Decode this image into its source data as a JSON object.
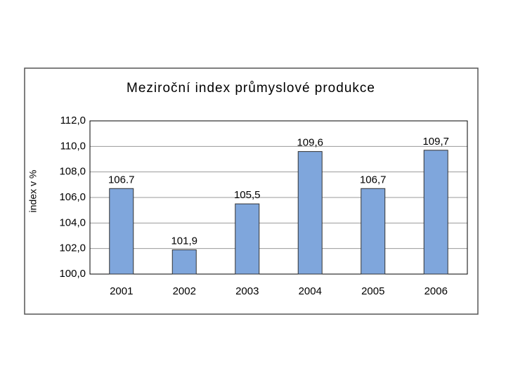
{
  "chart_data": {
    "type": "bar",
    "title": "Meziroční index průmyslové produkce",
    "y_label": "index v %",
    "categories": [
      "2001",
      "2002",
      "2003",
      "2004",
      "2005",
      "2006"
    ],
    "values": [
      106.7,
      101.9,
      105.5,
      109.6,
      106.7,
      109.7
    ],
    "value_labels": [
      "106.7",
      "101,9",
      "105,5",
      "109,6",
      "106,7",
      "109,7"
    ],
    "color": "#7fa6dc",
    "ylim": [
      100,
      112
    ],
    "yticks": [
      {
        "value": 100,
        "label": "100,0"
      },
      {
        "value": 102,
        "label": "102,0"
      },
      {
        "value": 104,
        "label": "104,0"
      },
      {
        "value": 106,
        "label": "106,0"
      },
      {
        "value": 108,
        "label": "108,0"
      },
      {
        "value": 110,
        "label": "110,0"
      },
      {
        "value": 112,
        "label": "112,0"
      }
    ],
    "grid": true
  }
}
